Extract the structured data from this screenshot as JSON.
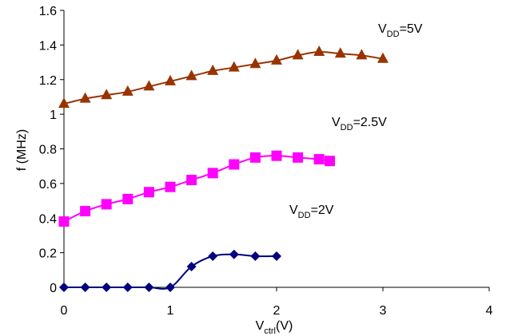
{
  "chart_data": {
    "type": "scatter",
    "xlabel": {
      "main": "V",
      "sub": "ctrl",
      "rest": "(V)"
    },
    "ylabel": "f (MHz)",
    "xlim": [
      0,
      4
    ],
    "ylim": [
      0,
      1.6
    ],
    "x_ticks": [
      "0",
      "1",
      "2",
      "3",
      "4"
    ],
    "y_ticks": [
      "0",
      "0.2",
      "0.4",
      "0.6",
      "0.8",
      "1",
      "1.2",
      "1.4",
      "1.6"
    ],
    "grid": false,
    "legend": "none",
    "series": [
      {
        "name": "VDD=5V",
        "label": {
          "main": "V",
          "sub": "DD",
          "rest": "=5V"
        },
        "color": "#993300",
        "marker": "triangle",
        "x": [
          0,
          0.2,
          0.4,
          0.6,
          0.8,
          1.0,
          1.2,
          1.4,
          1.6,
          1.8,
          2.0,
          2.2,
          2.4,
          2.6,
          2.8,
          3.0
        ],
        "y": [
          1.06,
          1.09,
          1.11,
          1.13,
          1.16,
          1.19,
          1.22,
          1.25,
          1.27,
          1.29,
          1.31,
          1.34,
          1.36,
          1.35,
          1.34,
          1.32
        ]
      },
      {
        "name": "VDD=2.5V",
        "label": {
          "main": "V",
          "sub": "DD",
          "rest": "=2.5V"
        },
        "color": "#ff00ff",
        "marker": "square",
        "x": [
          0,
          0.2,
          0.4,
          0.6,
          0.8,
          1.0,
          1.2,
          1.4,
          1.6,
          1.8,
          2.0,
          2.2,
          2.4,
          2.5
        ],
        "y": [
          0.38,
          0.44,
          0.48,
          0.51,
          0.55,
          0.58,
          0.62,
          0.66,
          0.71,
          0.75,
          0.76,
          0.75,
          0.74,
          0.73
        ]
      },
      {
        "name": "VDD=2V",
        "label": {
          "main": "V",
          "sub": "DD",
          "rest": "=2V"
        },
        "color": "#000080",
        "marker": "diamond",
        "x": [
          0,
          0.2,
          0.4,
          0.6,
          0.8,
          1.0,
          1.2,
          1.4,
          1.6,
          1.8,
          2.0
        ],
        "y": [
          0,
          0,
          0,
          0,
          0,
          0,
          0.12,
          0.18,
          0.19,
          0.18,
          0.18
        ]
      }
    ]
  }
}
